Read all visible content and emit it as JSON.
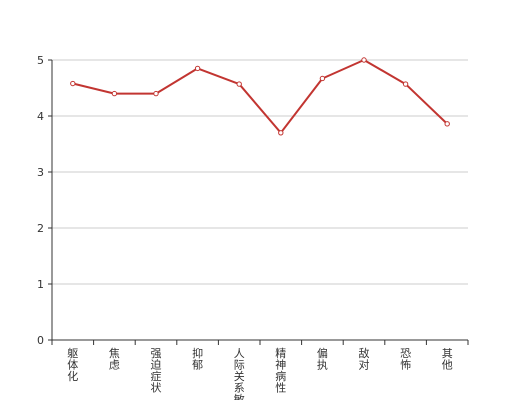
{
  "chart_data": {
    "type": "line",
    "categories": [
      "躯体化",
      "焦虑",
      "强迫症状",
      "抑郁",
      "人际关系敏感",
      "精神病性",
      "偏执",
      "敌对",
      "恐怖",
      "其他"
    ],
    "values": [
      4.58,
      4.4,
      4.4,
      4.85,
      4.57,
      3.7,
      4.67,
      5.0,
      4.57,
      3.86
    ],
    "ylim": [
      0,
      5
    ],
    "yticks": [
      0,
      1,
      2,
      3,
      4,
      5
    ],
    "grid": "horizontal",
    "line_color": "#c23531",
    "axis_color": "#333333",
    "grid_color": "#cccccc"
  }
}
